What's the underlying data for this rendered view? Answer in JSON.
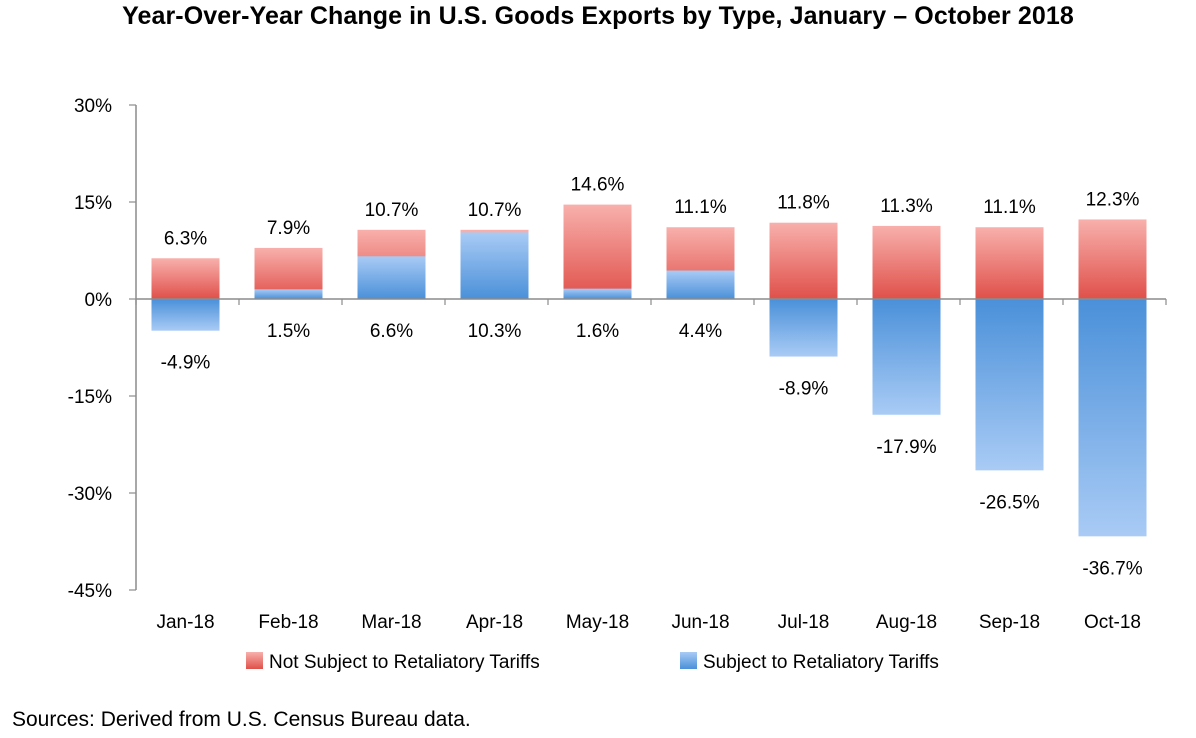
{
  "chart_data": {
    "type": "bar",
    "title": "Year-Over-Year Change in U.S. Goods Exports by Type, January – October 2018",
    "xlabel": "",
    "ylabel": "",
    "ylim": [
      -45,
      30
    ],
    "yticks": [
      30,
      15,
      0,
      -15,
      -30,
      -45
    ],
    "ytick_labels": [
      "30%",
      "15%",
      "0%",
      "-15%",
      "-30%",
      "-45%"
    ],
    "categories": [
      "Jan-18",
      "Feb-18",
      "Mar-18",
      "Apr-18",
      "May-18",
      "Jun-18",
      "Jul-18",
      "Aug-18",
      "Sep-18",
      "Oct-18"
    ],
    "series": [
      {
        "name": "Not Subject to Retaliatory Tariffs",
        "color": "#e8504c",
        "values": [
          6.3,
          7.9,
          10.7,
          10.7,
          14.6,
          11.1,
          11.8,
          11.3,
          11.1,
          12.3
        ],
        "labels": [
          "6.3%",
          "7.9%",
          "10.7%",
          "10.7%",
          "14.6%",
          "11.1%",
          "11.8%",
          "11.3%",
          "11.1%",
          "12.3%"
        ]
      },
      {
        "name": "Subject to Retaliatory Tariffs",
        "color": "#5b9bd5",
        "values": [
          -4.9,
          1.5,
          6.6,
          10.3,
          1.6,
          4.4,
          -8.9,
          -17.9,
          -26.5,
          -36.7
        ],
        "labels": [
          "-4.9%",
          "1.5%",
          "6.6%",
          "10.3%",
          "1.6%",
          "4.4%",
          "-8.9%",
          "-17.9%",
          "-26.5%",
          "-36.7%"
        ]
      }
    ],
    "legend_position": "bottom",
    "grid": false
  },
  "source_note": "Sources: Derived from U.S. Census Bureau data."
}
